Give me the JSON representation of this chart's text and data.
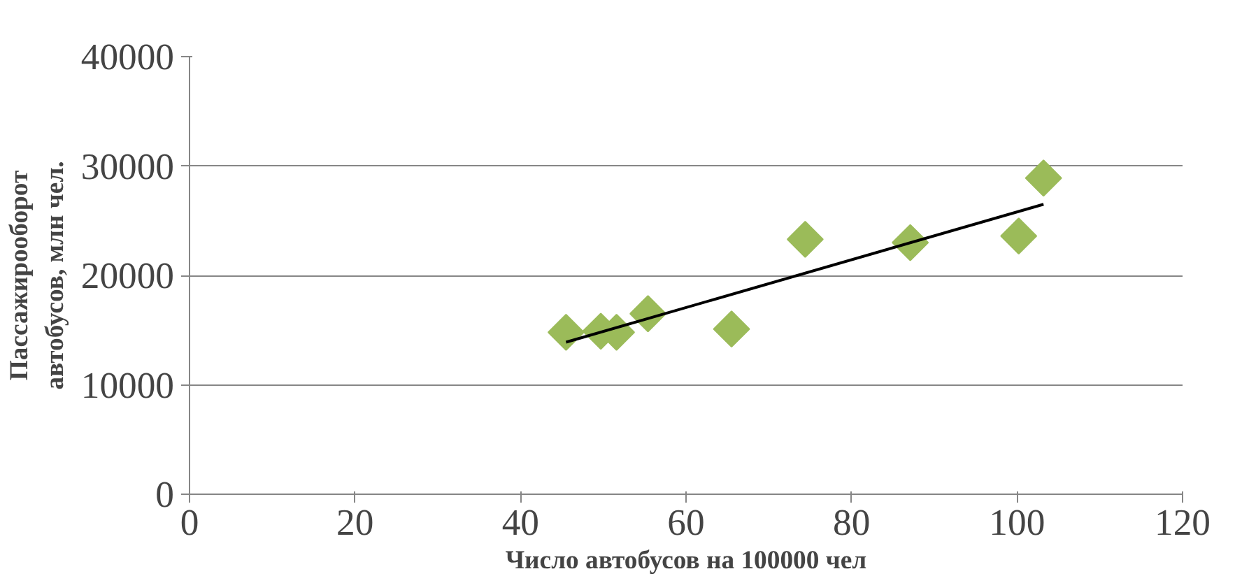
{
  "chart_data": {
    "type": "scatter",
    "xlabel": "Число автобусов на 100000 чел",
    "ylabel": "Пассажирооборот\nавтобусов, млн чел.",
    "xlim": [
      0,
      120
    ],
    "xticks": [
      0,
      20,
      40,
      60,
      80,
      100,
      120
    ],
    "ylim": [
      0,
      40000
    ],
    "yticks": [
      0,
      10000,
      20000,
      30000,
      40000
    ],
    "grid": "y",
    "series": [
      {
        "marker": "diamond",
        "color": "#9bbb59",
        "x": [
          45.5,
          49.7,
          51.6,
          55.4,
          65.5,
          74.4,
          87.1,
          100.2,
          103.2
        ],
        "values": [
          14800,
          14900,
          14800,
          16500,
          15100,
          23300,
          23000,
          23600,
          28900
        ]
      },
      {
        "type": "line",
        "color": "#000000",
        "x": [
          45.5,
          103.2
        ],
        "values": [
          13900,
          26500
        ],
        "line_style": "solid"
      }
    ]
  }
}
